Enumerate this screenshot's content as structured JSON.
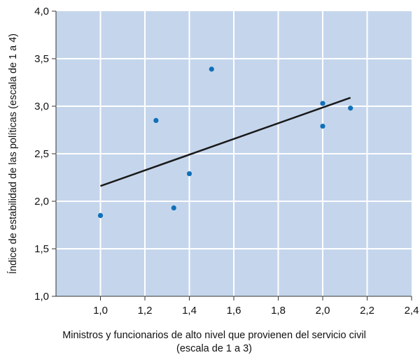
{
  "chart_data": {
    "type": "scatter",
    "xlabel_lines": [
      "Ministros y funcionarios de alto nivel que provienen del servicio civil",
      "(escala de 1 a 3)"
    ],
    "ylabel": "Índice de estabilidad de las políticas (escala de 1 a 4)",
    "xlim": [
      0.8,
      2.4
    ],
    "ylim": [
      1.0,
      4.0
    ],
    "x_ticks": [
      1.0,
      1.2,
      1.4,
      1.6,
      1.8,
      2.0,
      2.2,
      2.4
    ],
    "x_tick_labels": [
      "1,0",
      "1,2",
      "1,4",
      "1,6",
      "1,8",
      "2,0",
      "2,2",
      "2,4"
    ],
    "y_ticks": [
      1.0,
      1.5,
      2.0,
      2.5,
      3.0,
      3.5,
      4.0
    ],
    "y_tick_labels": [
      "1,0",
      "1,5",
      "2,0",
      "2,5",
      "3,0",
      "3,5",
      "4,0"
    ],
    "grid": true,
    "points": [
      {
        "x": 1.0,
        "y": 1.85
      },
      {
        "x": 1.25,
        "y": 2.85
      },
      {
        "x": 1.33,
        "y": 1.93
      },
      {
        "x": 1.4,
        "y": 2.29
      },
      {
        "x": 1.5,
        "y": 3.39
      },
      {
        "x": 2.0,
        "y": 3.03
      },
      {
        "x": 2.0,
        "y": 2.79
      },
      {
        "x": 2.125,
        "y": 2.98
      }
    ],
    "trendline": {
      "x": [
        1.0,
        2.125
      ],
      "y": [
        2.16,
        3.09
      ]
    },
    "colors": {
      "plot_background": "#c5d6ec",
      "grid": "#ffffff",
      "points": "#1070b8",
      "trendline": "#1a1a1a",
      "axis": "#333333"
    }
  }
}
